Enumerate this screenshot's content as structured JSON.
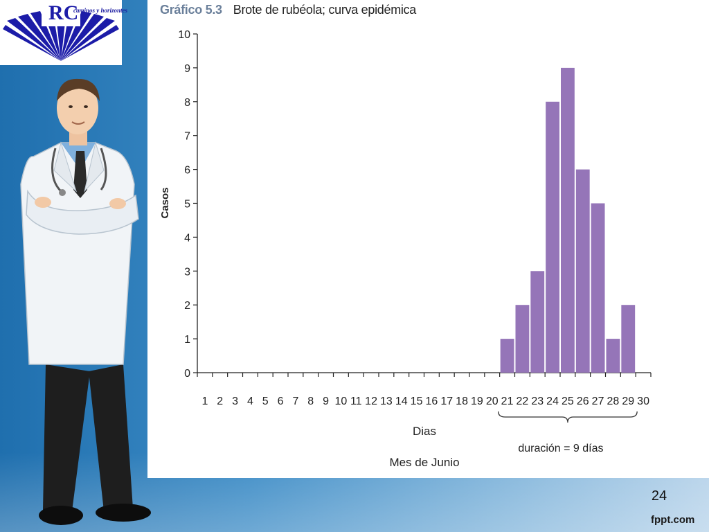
{
  "slide": {
    "logo_text": "caminos y horizontes",
    "slide_number": "24",
    "footer_brand": "fppt.com"
  },
  "chart_data": {
    "type": "bar",
    "title_number": "Gráfico 5.3",
    "title": "Brote de rubéola; curva epidémica",
    "xlabel": "Dias",
    "xlabel_secondary": "Mes de Junio",
    "ylabel": "Casos",
    "ylim": [
      0,
      10
    ],
    "yticks": [
      0,
      1,
      2,
      3,
      4,
      5,
      6,
      7,
      8,
      9,
      10
    ],
    "categories": [
      "1",
      "2",
      "3",
      "4",
      "5",
      "6",
      "7",
      "8",
      "9",
      "10",
      "11",
      "12",
      "13",
      "14",
      "15",
      "16",
      "17",
      "18",
      "19",
      "20",
      "21",
      "22",
      "23",
      "24",
      "25",
      "26",
      "27",
      "28",
      "29",
      "30"
    ],
    "values": [
      0,
      0,
      0,
      0,
      0,
      0,
      0,
      0,
      0,
      0,
      0,
      0,
      0,
      0,
      0,
      0,
      0,
      0,
      0,
      0,
      1,
      2,
      3,
      8,
      9,
      6,
      5,
      1,
      2,
      0
    ],
    "bar_color": "#9575b8",
    "annotation": {
      "text": "duración = 9 días",
      "from_category": "21",
      "to_category": "29"
    },
    "grid": false
  }
}
